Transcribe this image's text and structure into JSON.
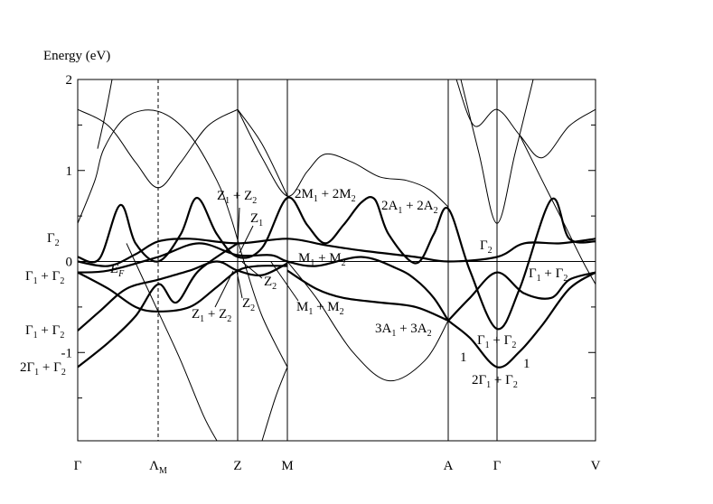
{
  "chart_data": {
    "type": "band-structure",
    "y_label": "Energy (eV)",
    "xlim": [
      0,
      573
    ],
    "ylim": [
      -1.97,
      2
    ],
    "xticks": [
      {
        "value": 0,
        "label": "Γ"
      },
      {
        "value": 89,
        "label": "ΛM"
      },
      {
        "value": 177,
        "label": "Z"
      },
      {
        "value": 232,
        "label": "M"
      },
      {
        "value": 410,
        "label": "A"
      },
      {
        "value": 464,
        "label": "Γ"
      },
      {
        "value": 573,
        "label": "V"
      }
    ],
    "xtick_lines": [
      "none",
      "dashed",
      "solid",
      "solid",
      "solid",
      "solid",
      "none"
    ],
    "yticks": [
      2,
      1,
      0,
      -1
    ],
    "yticks_minor": [
      1.5,
      0.5,
      -0.5,
      -1.5
    ],
    "hlines": [
      0
    ],
    "color": "#000000",
    "series": [
      {
        "line_width": 1,
        "x": [
          0,
          34,
          64,
          89,
          114,
          144,
          177
        ],
        "values": [
          1.67,
          1.49,
          1.09,
          0.81,
          1.09,
          1.49,
          1.67
        ]
      },
      {
        "line_width": 1,
        "x": [
          0,
          19,
          29,
          54,
          89,
          124,
          154,
          169,
          184,
          204,
          232
        ],
        "values": [
          0.42,
          0.89,
          1.24,
          1.59,
          1.65,
          1.39,
          0.89,
          0.5,
          0,
          -0.6,
          -1.16
        ]
      },
      {
        "line_width": 1,
        "x": [
          232,
          264,
          304,
          344,
          384,
          410
        ],
        "values": [
          0,
          -0.4,
          -0.99,
          -1.31,
          -1.09,
          -0.65
        ]
      },
      {
        "line_width": 1,
        "x": [
          54,
          89,
          114,
          139,
          154
        ],
        "values": [
          0.2,
          -0.55,
          -1.09,
          -1.69,
          -1.97
        ]
      },
      {
        "line_width": 1,
        "x": [
          177,
          204,
          232,
          254,
          274,
          304,
          334,
          364,
          389,
          410
        ],
        "values": [
          1.67,
          1.14,
          0.72,
          0.99,
          1.18,
          1.09,
          0.93,
          0.89,
          0.79,
          0.6
        ]
      },
      {
        "line_width": 1,
        "x": [
          177,
          204,
          232
        ],
        "values": [
          1.67,
          1.29,
          0.72
        ]
      },
      {
        "line_width": 1,
        "x": [
          424,
          444,
          464,
          484,
          504
        ],
        "values": [
          2,
          1.19,
          0.42,
          1.19,
          2
        ]
      },
      {
        "line_width": 1,
        "x": [
          419,
          439,
          464,
          489,
          514,
          544,
          573
        ],
        "values": [
          2,
          1.49,
          1.67,
          1.39,
          1.14,
          1.49,
          1.67
        ]
      },
      {
        "line_width": 1,
        "x": [
          489,
          514,
          539,
          559,
          573
        ],
        "values": [
          1.39,
          0.89,
          0.4,
          0,
          -0.25
        ]
      },
      {
        "line_width": 1,
        "x": [
          22,
          31,
          38
        ],
        "values": [
          1.24,
          1.64,
          2
        ]
      },
      {
        "line_width": 1,
        "x": [
          204,
          219,
          232
        ],
        "values": [
          -1.97,
          -1.49,
          -1.16
        ]
      },
      {
        "line_width": 2.2,
        "x": [
          0,
          24,
          47,
          64,
          89,
          114,
          132,
          154,
          177,
          204,
          232,
          254,
          274,
          294,
          314,
          329,
          344,
          374,
          394,
          410,
          434,
          464,
          489,
          524,
          544,
          573
        ],
        "values": [
          0.05,
          0.03,
          0.62,
          0.2,
          0,
          0.3,
          0.7,
          0.3,
          0.05,
          0.15,
          0.7,
          0.4,
          0.2,
          0.4,
          0.65,
          0.68,
          0.3,
          -0.02,
          0.3,
          0.58,
          -0.1,
          -0.74,
          -0.3,
          0.68,
          0.25,
          0.22
        ]
      },
      {
        "line_width": 2.2,
        "x": [
          0,
          34,
          64,
          89,
          124,
          177,
          232,
          274,
          314,
          374,
          410,
          464,
          494,
          534,
          573
        ],
        "values": [
          0,
          -0.05,
          0.08,
          0.22,
          0.25,
          0.2,
          0.25,
          0.18,
          0.12,
          0.05,
          0,
          0.05,
          0.2,
          0.2,
          0.25
        ]
      },
      {
        "line_width": 2.2,
        "x": [
          0,
          34,
          89,
          134,
          177,
          214,
          232,
          264,
          314,
          354,
          374,
          394,
          410
        ],
        "values": [
          -0.12,
          -0.1,
          0.05,
          0.2,
          0.07,
          0.07,
          0,
          -0.05,
          0.05,
          -0.08,
          -0.2,
          -0.4,
          -0.65
        ]
      },
      {
        "line_width": 2.2,
        "x": [
          0,
          24,
          54,
          89,
          124,
          154,
          177,
          204,
          232
        ],
        "values": [
          -0.76,
          -0.55,
          -0.3,
          -0.2,
          -0.1,
          0,
          -0.1,
          -0.15,
          -0.02
        ]
      },
      {
        "line_width": 2.2,
        "x": [
          0,
          34,
          64,
          89,
          109,
          134,
          177
        ],
        "values": [
          -1.16,
          -0.89,
          -0.6,
          -0.25,
          -0.45,
          -0.1,
          0.2
        ]
      },
      {
        "line_width": 2.2,
        "x": [
          0,
          34,
          64,
          89,
          124,
          154,
          177,
          199,
          232
        ],
        "values": [
          -0.12,
          -0.3,
          -0.5,
          -0.55,
          -0.5,
          -0.28,
          -0.1,
          -0.05,
          -0.05
        ]
      },
      {
        "line_width": 2.2,
        "x": [
          232,
          264,
          294,
          334,
          374,
          410
        ],
        "values": [
          -0.1,
          -0.3,
          -0.4,
          -0.45,
          -0.5,
          -0.65
        ]
      },
      {
        "line_width": 2.2,
        "x": [
          410,
          434,
          464,
          489,
          514,
          544,
          573
        ],
        "values": [
          -0.65,
          -0.84,
          -1.16,
          -0.99,
          -0.7,
          -0.3,
          -0.12
        ]
      },
      {
        "line_width": 2.2,
        "x": [
          410,
          434,
          464,
          494,
          524,
          544,
          573
        ],
        "values": [
          -0.65,
          -0.4,
          -0.12,
          -0.35,
          -0.4,
          -0.2,
          -0.12
        ]
      }
    ],
    "annotations": [
      "Γ2",
      "Γ1 + Γ2",
      "Γ1 + Γ2",
      "2Γ1 + Γ2",
      "EF",
      "Z1 + Z2",
      "Z1",
      "Z2",
      "Z2",
      "Z1 + Z2",
      "M1 + M2",
      "M1 + M2",
      "2M1 + 2M2",
      "2A1 + 2A2",
      "3A1 + 3A2",
      "Γ2",
      "Γ1 + Γ2",
      "Γ1 + Γ2",
      "2Γ1 + Γ2",
      "1",
      "1"
    ]
  }
}
